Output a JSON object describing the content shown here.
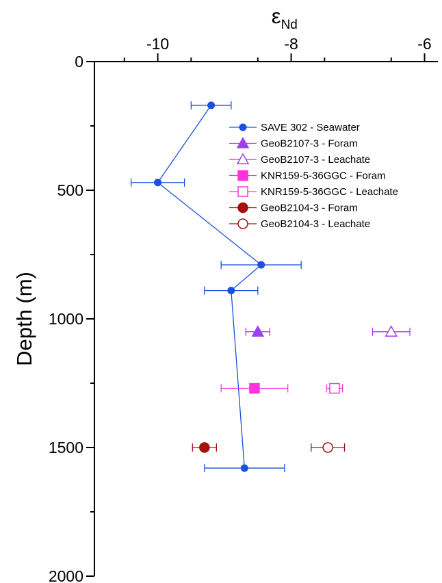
{
  "chart_data": {
    "type": "scatter",
    "xlabel": {
      "symbol": "ε",
      "subscript": "Nd"
    },
    "ylabel": "Depth (m)",
    "xlim": [
      -10.95,
      -5.8
    ],
    "ylim": [
      2000,
      0
    ],
    "y_inverted": true,
    "x_axis_position": "top",
    "x_ticks": [
      -10,
      -8,
      -6
    ],
    "x_tick_labels": [
      "-10",
      "-8",
      "-6"
    ],
    "y_ticks": [
      0,
      500,
      1000,
      1500,
      2000
    ],
    "y_tick_labels": [
      "0",
      "500",
      "1000",
      "1500",
      "2000"
    ],
    "grid": false,
    "legend_position": "upper-right-inside",
    "series": [
      {
        "name": "SAVE 302 - Seawater",
        "marker": "circle-small",
        "filled": true,
        "line": true,
        "color": "#1a4fe0",
        "points": [
          {
            "x": -9.2,
            "y": 170,
            "err": 0.3
          },
          {
            "x": -10.0,
            "y": 470,
            "err": 0.4
          },
          {
            "x": -8.45,
            "y": 790,
            "err": 0.6
          },
          {
            "x": -8.9,
            "y": 890,
            "err": 0.4
          },
          {
            "x": -8.7,
            "y": 1580,
            "err": 0.6
          }
        ]
      },
      {
        "name": "GeoB2107-3 - Foram",
        "marker": "triangle",
        "filled": true,
        "line": false,
        "color": "#a03ff0",
        "points": [
          {
            "x": -8.5,
            "y": 1050,
            "err": 0.18
          }
        ]
      },
      {
        "name": "GeoB2107-3 - Leachate",
        "marker": "triangle",
        "filled": false,
        "line": false,
        "color": "#a03ff0",
        "points": [
          {
            "x": -6.5,
            "y": 1050,
            "err": 0.28
          }
        ]
      },
      {
        "name": "KNR159-5-36GGC - Foram",
        "marker": "square",
        "filled": true,
        "line": false,
        "color": "#ff33dd",
        "points": [
          {
            "x": -8.55,
            "y": 1270,
            "err": 0.5
          }
        ]
      },
      {
        "name": "KNR159-5-36GGC - Leachate",
        "marker": "square",
        "filled": false,
        "line": false,
        "color": "#ff33dd",
        "points": [
          {
            "x": -7.35,
            "y": 1270,
            "err": 0.12
          }
        ]
      },
      {
        "name": "GeoB2104-3 - Foram",
        "marker": "circle",
        "filled": true,
        "line": false,
        "color": "#a50f0f",
        "points": [
          {
            "x": -9.3,
            "y": 1500,
            "err": 0.18
          }
        ]
      },
      {
        "name": "GeoB2104-3 - Leachate",
        "marker": "circle",
        "filled": false,
        "line": false,
        "color": "#a50f0f",
        "points": [
          {
            "x": -7.45,
            "y": 1500,
            "err": 0.25
          }
        ]
      }
    ]
  }
}
